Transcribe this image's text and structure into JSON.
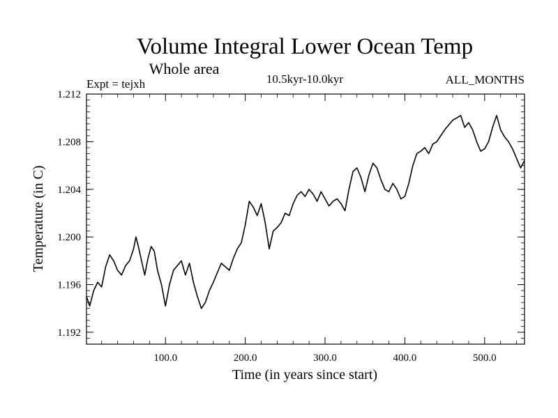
{
  "chart_data": {
    "type": "line",
    "title": "Volume Integral Lower Ocean Temp",
    "subtitle": "Whole area",
    "expt_label": "Expt = tejxh",
    "period_label": "10.5kyr-10.0kyr",
    "months_label": "ALL_MONTHS",
    "xlabel": "Time (in years since start)",
    "ylabel": "Temperature (in C)",
    "xlim": [
      1,
      550
    ],
    "ylim": [
      1.191,
      1.212
    ],
    "xticks": [
      100,
      200,
      300,
      400,
      500
    ],
    "xtick_labels": [
      "100.0",
      "200.0",
      "300.0",
      "400.0",
      "500.0"
    ],
    "yticks": [
      1.192,
      1.196,
      1.2,
      1.204,
      1.208,
      1.212
    ],
    "ytick_labels": [
      "1.192",
      "1.196",
      "1.200",
      "1.204",
      "1.208",
      "1.212"
    ],
    "grid": false,
    "series": [
      {
        "name": "Volume integral lower ocean temperature",
        "x": [
          1,
          5,
          10,
          15,
          20,
          25,
          30,
          35,
          40,
          45,
          50,
          55,
          60,
          63,
          66,
          70,
          74,
          78,
          82,
          86,
          90,
          95,
          100,
          105,
          110,
          115,
          120,
          125,
          130,
          135,
          140,
          145,
          150,
          155,
          160,
          165,
          170,
          175,
          180,
          185,
          190,
          195,
          200,
          205,
          210,
          215,
          220,
          225,
          230,
          235,
          240,
          245,
          250,
          255,
          260,
          265,
          270,
          275,
          280,
          285,
          290,
          295,
          300,
          305,
          310,
          315,
          320,
          325,
          330,
          335,
          340,
          345,
          350,
          355,
          360,
          365,
          370,
          375,
          380,
          385,
          390,
          395,
          400,
          405,
          410,
          415,
          420,
          425,
          430,
          435,
          440,
          445,
          450,
          455,
          460,
          465,
          470,
          475,
          480,
          485,
          490,
          495,
          500,
          505,
          510,
          515,
          520,
          525,
          530,
          535,
          540,
          545,
          550
        ],
        "y": [
          1.195,
          1.1942,
          1.1955,
          1.1962,
          1.1958,
          1.1975,
          1.1985,
          1.198,
          1.1972,
          1.1968,
          1.1976,
          1.198,
          1.199,
          1.2,
          1.1992,
          1.198,
          1.1968,
          1.1982,
          1.1992,
          1.1988,
          1.1972,
          1.196,
          1.1942,
          1.196,
          1.1972,
          1.1976,
          1.198,
          1.1968,
          1.1978,
          1.1962,
          1.195,
          1.194,
          1.1945,
          1.1955,
          1.1962,
          1.197,
          1.1978,
          1.1975,
          1.1972,
          1.1982,
          1.199,
          1.1995,
          1.201,
          1.203,
          1.2025,
          1.2018,
          1.2028,
          1.2012,
          1.199,
          1.2005,
          1.2008,
          1.2012,
          1.202,
          1.2018,
          1.2028,
          1.2035,
          1.2038,
          1.2034,
          1.204,
          1.2036,
          1.203,
          1.2038,
          1.2032,
          1.2026,
          1.203,
          1.2032,
          1.2028,
          1.2022,
          1.204,
          1.2055,
          1.2058,
          1.205,
          1.2038,
          1.2052,
          1.2062,
          1.2058,
          1.2048,
          1.204,
          1.2038,
          1.2045,
          1.204,
          1.2032,
          1.2034,
          1.2045,
          1.206,
          1.207,
          1.2072,
          1.2075,
          1.207,
          1.2078,
          1.208,
          1.2085,
          1.209,
          1.2094,
          1.2098,
          1.21,
          1.2102,
          1.2092,
          1.2096,
          1.209,
          1.208,
          1.2072,
          1.2074,
          1.208,
          1.2092,
          1.2102,
          1.209,
          1.2084,
          1.208,
          1.2074,
          1.2066,
          1.2058,
          1.2064
        ]
      }
    ]
  }
}
